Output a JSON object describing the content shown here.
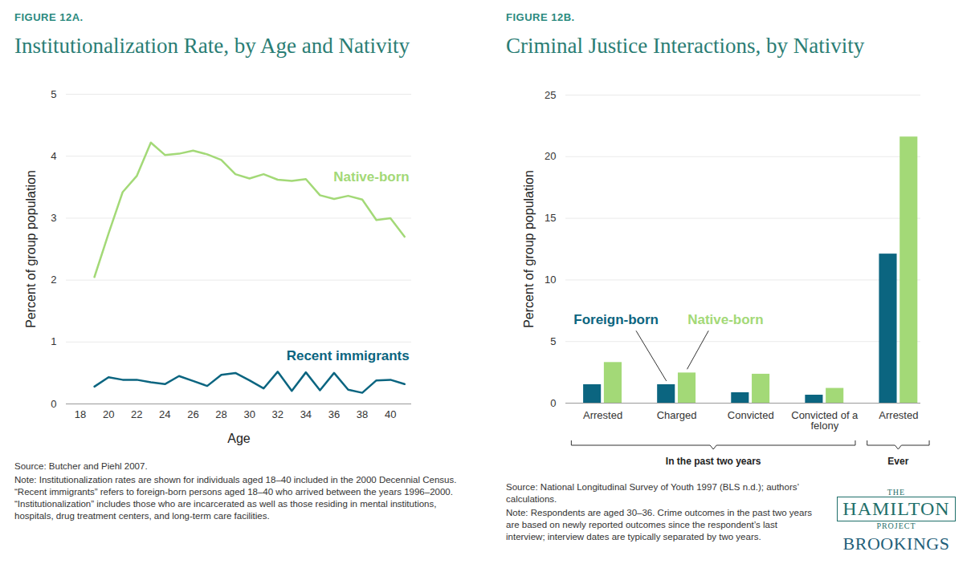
{
  "chart_data": [
    {
      "type": "line",
      "figure_label": "FIGURE 12A.",
      "title": "Institutionalization Rate, by Age and Nativity",
      "x_label": "Age",
      "y_label": "Percent of group population",
      "x": [
        19,
        20,
        21,
        22,
        23,
        24,
        25,
        26,
        27,
        28,
        29,
        30,
        31,
        32,
        33,
        34,
        35,
        36,
        37,
        38,
        39,
        40,
        41
      ],
      "series": [
        {
          "name": "Native-born",
          "color": "#a3d977",
          "values": [
            2.05,
            2.75,
            3.42,
            3.68,
            4.22,
            4.02,
            4.04,
            4.09,
            4.03,
            3.94,
            3.71,
            3.64,
            3.71,
            3.62,
            3.6,
            3.63,
            3.37,
            3.31,
            3.36,
            3.3,
            2.97,
            3.0,
            2.7
          ]
        },
        {
          "name": "Recent immigrants",
          "color": "#0b6580",
          "values": [
            0.28,
            0.43,
            0.39,
            0.39,
            0.35,
            0.32,
            0.45,
            0.37,
            0.29,
            0.47,
            0.5,
            0.38,
            0.25,
            0.52,
            0.21,
            0.51,
            0.22,
            0.5,
            0.23,
            0.18,
            0.38,
            0.39,
            0.32
          ]
        }
      ],
      "xlim": [
        17,
        41.5
      ],
      "xticks": [
        18,
        20,
        22,
        24,
        26,
        28,
        30,
        32,
        34,
        36,
        38,
        40
      ],
      "ylim": [
        0,
        5
      ],
      "yticks": [
        0,
        1,
        2,
        3,
        4,
        5
      ],
      "grid": true,
      "source": "Source: Butcher and Piehl 2007.",
      "note": "Note: Institutionalization rates are shown for individuals aged 18–40 included in the 2000 Decennial Census. “Recent immigrants” refers to foreign-born persons aged 18–40 who arrived between the years 1996–2000. “Institutionalization” includes those who are incarcerated as well as those residing in mental institutions, hospitals, drug treatment centers, and long-term care facilities."
    },
    {
      "type": "bar",
      "figure_label": "FIGURE 12B.",
      "title": "Criminal Justice Interactions, by Nativity",
      "y_label": "Percent of group population",
      "categories": [
        "Arrested",
        "Charged",
        "Convicted",
        "Convicted of a felony",
        "Arrested"
      ],
      "category_groups": [
        "In the past two years",
        "In the past two years",
        "In the past two years",
        "In the past two years",
        "Ever"
      ],
      "series": [
        {
          "name": "Foreign-born",
          "color": "#0b6580",
          "values": [
            1.5,
            1.5,
            0.85,
            0.65,
            12.1
          ]
        },
        {
          "name": "Native-born",
          "color": "#a3d977",
          "values": [
            3.3,
            2.45,
            2.35,
            1.2,
            21.6
          ]
        }
      ],
      "ylim": [
        0,
        25
      ],
      "yticks": [
        0,
        5,
        10,
        15,
        20,
        25
      ],
      "grid": true,
      "source": "Source: National Longitudinal Survey of Youth 1997 (BLS n.d.); authors’ calculations.",
      "note": "Note: Respondents are aged 30–36. Crime outcomes in the past two years are based on newly reported outcomes since the respondent’s last interview; interview dates are typically separated by two years."
    }
  ],
  "logo": {
    "line1": "THE",
    "line2": "HAMILTON",
    "line3": "PROJECT",
    "line4": "BROOKINGS"
  }
}
